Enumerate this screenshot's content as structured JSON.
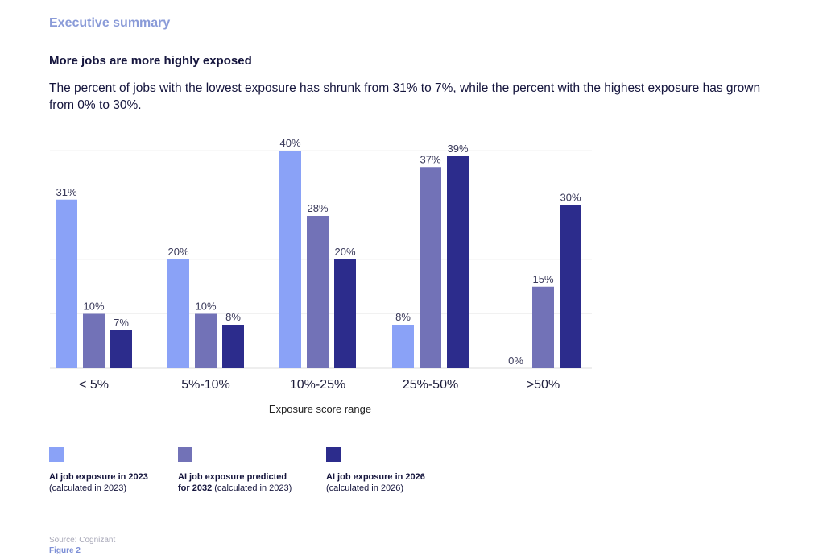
{
  "page": {
    "section": "Executive summary",
    "headline": "More jobs are more highly exposed",
    "subtitle": "The percent of jobs with the lowest exposure has shrunk from 31% to 7%, while the percent with the highest exposure has grown from 0% to 30%.",
    "source": "Source: Cognizant",
    "figure": "Figure 2"
  },
  "chart_data": {
    "type": "bar",
    "title": "More jobs are more highly exposed",
    "xlabel": "Exposure score range",
    "ylabel": "",
    "ylim": [
      0,
      40
    ],
    "grid": true,
    "categories": [
      "< 5%",
      "5%-10%",
      "10%-25%",
      "25%-50%",
      ">50%"
    ],
    "series": [
      {
        "name": "AI job exposure in 2023 (calculated in 2023)",
        "color": "#8aa2f7",
        "values": [
          31,
          20,
          40,
          8,
          0
        ]
      },
      {
        "name": "AI job exposure predicted for 2032 (calculated in 2023)",
        "color": "#7272b7",
        "values": [
          10,
          10,
          28,
          37,
          15
        ]
      },
      {
        "name": "AI job exposure in 2026 (calculated in 2026)",
        "color": "#2c2c8c",
        "values": [
          7,
          8,
          20,
          39,
          30
        ]
      }
    ]
  },
  "legend": [
    {
      "bold": "AI job exposure in 2023",
      "rest_bold": "",
      "normal": "(calculated in 2023)"
    },
    {
      "bold": "AI job exposure predicted",
      "rest_bold": "for 2032",
      "normal": " (calculated in 2023)"
    },
    {
      "bold": "AI job exposure in 2026",
      "rest_bold": "",
      "normal": "(calculated in 2026)"
    }
  ]
}
